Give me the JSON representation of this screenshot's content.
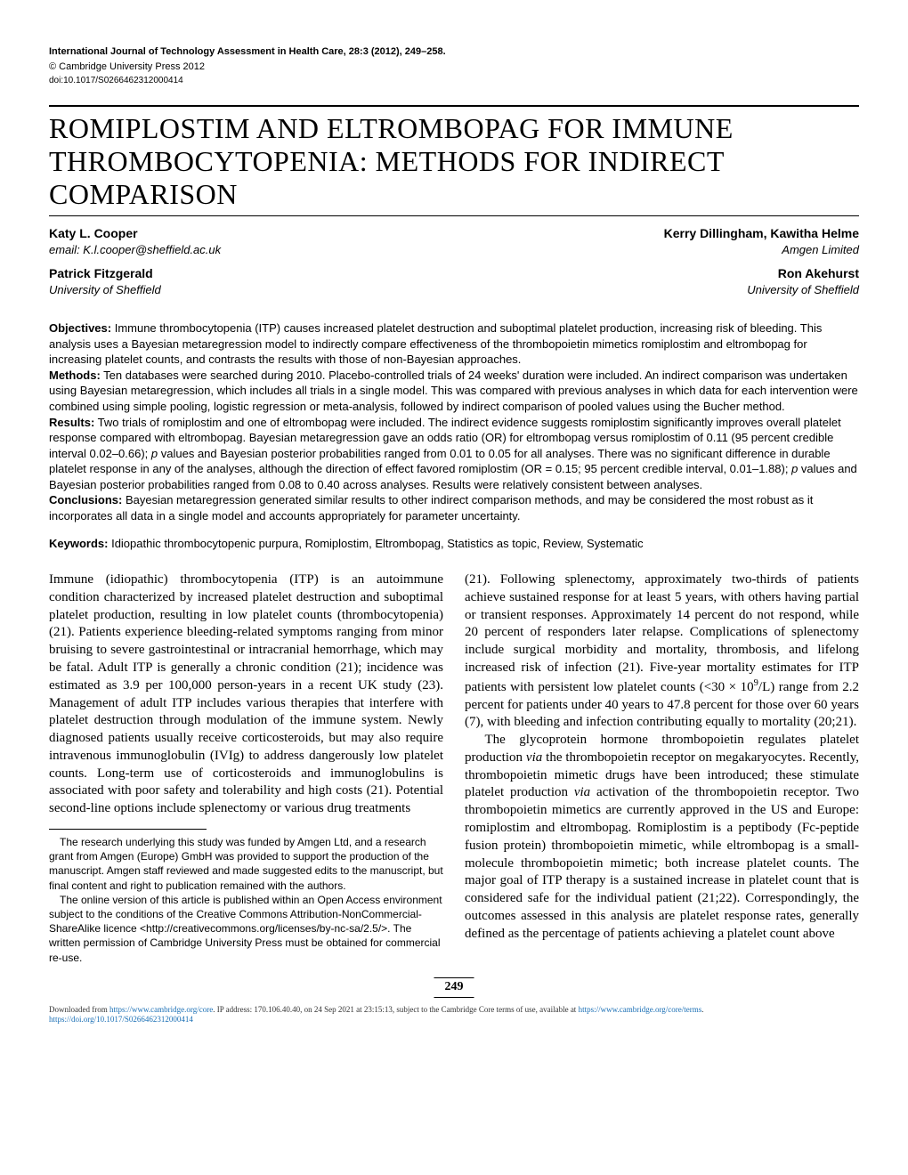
{
  "meta": {
    "journal": "International Journal of Technology Assessment in Health Care, 28:3 (2012), 249–258.",
    "copyright": "© Cambridge University Press 2012",
    "doi": "doi:10.1017/S0266462312000414"
  },
  "title": "ROMIPLOSTIM AND ELTROMBOPAG FOR IMMUNE THROMBOCYTOPENIA: METHODS FOR INDIRECT COMPARISON",
  "authors": {
    "left": [
      {
        "name": "Katy L. Cooper",
        "affil": "email: K.l.cooper@sheffield.ac.uk"
      },
      {
        "name": "Patrick Fitzgerald",
        "affil": "University of Sheffield"
      }
    ],
    "right": [
      {
        "name": "Kerry Dillingham, Kawitha Helme",
        "affil": "Amgen Limited"
      },
      {
        "name": "Ron Akehurst",
        "affil": "University of Sheffield"
      }
    ]
  },
  "abstract": {
    "objectives_label": "Objectives:",
    "objectives": " Immune thrombocytopenia (ITP) causes increased platelet destruction and suboptimal platelet production, increasing risk of bleeding. This analysis uses a Bayesian metaregression model to indirectly compare effectiveness of the thrombopoietin mimetics romiplostim and eltrombopag for increasing platelet counts, and contrasts the results with those of non-Bayesian approaches.",
    "methods_label": "Methods:",
    "methods": " Ten databases were searched during 2010. Placebo-controlled trials of 24 weeks' duration were included. An indirect comparison was undertaken using Bayesian metaregression, which includes all trials in a single model. This was compared with previous analyses in which data for each intervention were combined using simple pooling, logistic regression or meta-analysis, followed by indirect comparison of pooled values using the Bucher method.",
    "results_label": "Results:",
    "results_part1": " Two trials of romiplostim and one of eltrombopag were included. The indirect evidence suggests romiplostim significantly improves overall platelet response compared with eltrombopag. Bayesian metaregression gave an odds ratio (OR) for eltrombopag versus romiplostim of 0.11 (95 percent credible interval 0.02–0.66); ",
    "results_part2": " values and Bayesian posterior probabilities ranged from 0.01 to 0.05 for all analyses. There was no significant difference in durable platelet response in any of the analyses, although the direction of effect favored romiplostim (OR = 0.15; 95 percent credible interval, 0.01–1.88); ",
    "results_part3": " values and Bayesian posterior probabilities ranged from 0.08 to 0.40 across analyses. Results were relatively consistent between analyses.",
    "conclusions_label": "Conclusions:",
    "conclusions": " Bayesian metaregression generated similar results to other indirect comparison methods, and may be considered the most robust as it incorporates all data in a single model and accounts appropriately for parameter uncertainty."
  },
  "keywords": {
    "label": "Keywords:",
    "text": " Idiopathic thrombocytopenic purpura, Romiplostim, Eltrombopag, Statistics as topic, Review, Systematic"
  },
  "body": {
    "left_p1": "Immune (idiopathic) thrombocytopenia (ITP) is an autoimmune condition characterized by increased platelet destruction and suboptimal platelet production, resulting in low platelet counts (thrombocytopenia) (21). Patients experience bleeding-related symptoms ranging from minor bruising to severe gastrointestinal or intracranial hemorrhage, which may be fatal. Adult ITP is generally a chronic condition (21); incidence was estimated as 3.9 per 100,000 person-years in a recent UK study (23). Management of adult ITP includes various therapies that interfere with platelet destruction through modulation of the immune system. Newly diagnosed patients usually receive corticosteroids, but may also require intravenous immunoglobulin (IVIg) to address dangerously low platelet counts. Long-term use of corticosteroids and immunoglobulins is associated with poor safety and tolerability and high costs (21). Potential second-line options include splenectomy or various drug treatments",
    "right_p1_a": "(21). Following splenectomy, approximately two-thirds of patients achieve sustained response for at least 5 years, with others having partial or transient responses. Approximately 14 percent do not respond, while 20 percent of responders later relapse. Complications of splenectomy include surgical morbidity and mortality, thrombosis, and lifelong increased risk of infection (21). Five-year mortality estimates for ITP patients with persistent low platelet counts (<30 × 10",
    "right_p1_b": "/L) range from 2.2 percent for patients under 40 years to 47.8 percent for those over 60 years (7), with bleeding and infection contributing equally to mortality (20;21).",
    "right_p2_a": "The glycoprotein hormone thrombopoietin regulates platelet production ",
    "right_p2_b": " the thrombopoietin receptor on megakaryocytes. Recently, thrombopoietin mimetic drugs have been introduced; these stimulate platelet production ",
    "right_p2_c": " activation of the thrombopoietin receptor. Two thrombopoietin mimetics are currently approved in the US and Europe: romiplostim and eltrombopag. Romiplostim is a peptibody (Fc-peptide fusion protein) thrombopoietin mimetic, while eltrombopag is a small-molecule thrombopoietin mimetic; both increase platelet counts. The major goal of ITP therapy is a sustained increase in platelet count that is considered safe for the individual patient (21;22). Correspondingly, the outcomes assessed in this analysis are platelet response rates, generally defined as the percentage of patients achieving a platelet count above",
    "via": "via",
    "sup9": "9"
  },
  "footnotes": {
    "f1": "The research underlying this study was funded by Amgen Ltd, and a research grant from Amgen (Europe) GmbH was provided to support the production of the manuscript. Amgen staff reviewed and made suggested edits to the manuscript, but final content and right to publication remained with the authors.",
    "f2": "The online version of this article is published within an Open Access environment subject to the conditions of the Creative Commons Attribution-NonCommercial-ShareAlike licence <http://creativecommons.org/licenses/by-nc-sa/2.5/>. The written permission of Cambridge University Press must be obtained for commercial re-use."
  },
  "page_number": "249",
  "download": {
    "prefix": "Downloaded from ",
    "url1_text": "https://www.cambridge.org/core",
    "middle": ". IP address: 170.106.40.40, on 24 Sep 2021 at 23:15:13, subject to the Cambridge Core terms of use, available at ",
    "url2_text": "https://www.cambridge.org/core/terms",
    "dot": ". ",
    "doi_text": "https://doi.org/10.1017/S0266462312000414"
  },
  "p_italic": "p"
}
